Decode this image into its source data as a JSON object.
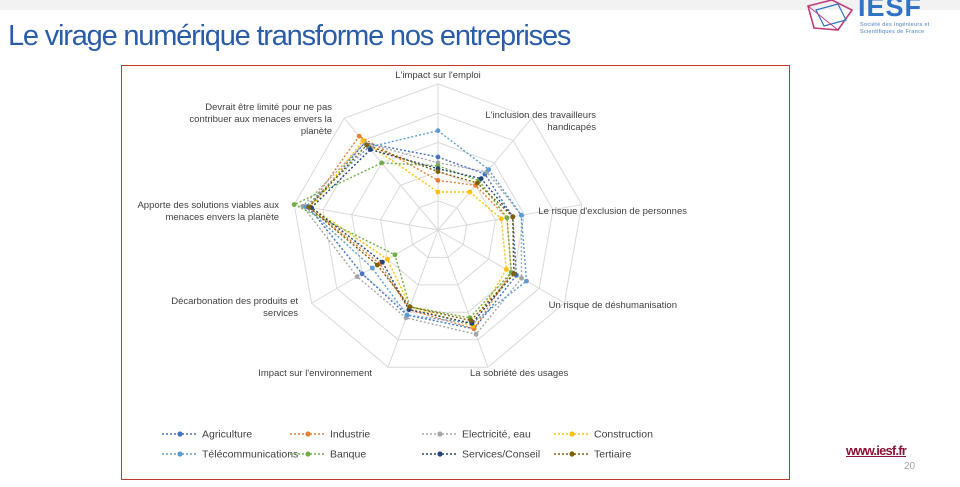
{
  "slide": {
    "title": "Le virage numérique transforme nos entreprises",
    "logo": {
      "word": "IESF",
      "line1": "Société des Ingénieurs et",
      "line2": "Scientifiques de France"
    },
    "website": "www.iesf.fr",
    "page_number": "20"
  },
  "colors": {
    "title": "#2a5ca8",
    "frame": "#c0392b",
    "link": "#8b1538",
    "grid": "#d9d9d9",
    "logo": "#2f73c6"
  },
  "chart_data": {
    "type": "radar",
    "title": "",
    "axes": [
      "L'impact sur l'emploi",
      "L'inclusion des travailleurs handicapés",
      "Le risque d'exclusion de personnes",
      "Un risque de déshumanisation",
      "La sobriété des usages",
      "Impact sur l'environnement",
      "Décarbonation des produits et services",
      "Apporte des solutions viables aux menaces envers la planète",
      "Devrait être limité pour ne pas contribuer aux menaces envers la planète"
    ],
    "range": [
      0,
      5
    ],
    "grid_levels": 5,
    "legend_position": "bottom",
    "series": [
      {
        "name": "Agriculture",
        "color": "#4472c4",
        "values": [
          2.5,
          2.5,
          2.6,
          3.1,
          3.6,
          3.1,
          3.0,
          4.5,
          3.9
        ]
      },
      {
        "name": "Industrie",
        "color": "#ed7d31",
        "values": [
          1.7,
          2.0,
          2.4,
          2.9,
          3.6,
          2.9,
          2.3,
          4.5,
          4.2
        ]
      },
      {
        "name": "Electricité, eau",
        "color": "#a5a5a5",
        "values": [
          2.3,
          2.6,
          2.9,
          3.3,
          3.8,
          3.2,
          3.2,
          4.7,
          3.9
        ]
      },
      {
        "name": "Construction",
        "color": "#ffc000",
        "values": [
          1.3,
          1.7,
          2.2,
          2.7,
          3.5,
          2.8,
          2.0,
          4.4,
          4.0
        ]
      },
      {
        "name": "Télécommunications",
        "color": "#5b9bd5",
        "values": [
          3.4,
          2.7,
          2.9,
          3.5,
          3.4,
          3.1,
          2.6,
          4.6,
          3.7
        ]
      },
      {
        "name": "Banque",
        "color": "#70ad47",
        "values": [
          2.2,
          2.2,
          2.4,
          2.9,
          3.2,
          2.8,
          1.7,
          5.0,
          3.0
        ]
      },
      {
        "name": "Services/Conseil",
        "color": "#264478",
        "values": [
          2.1,
          2.3,
          2.6,
          3.0,
          3.4,
          2.9,
          2.2,
          4.4,
          3.6
        ]
      },
      {
        "name": "Tertiaire",
        "color": "#7f6000",
        "values": [
          2.0,
          2.1,
          2.6,
          3.0,
          3.3,
          2.8,
          2.4,
          4.5,
          3.8
        ]
      }
    ]
  }
}
